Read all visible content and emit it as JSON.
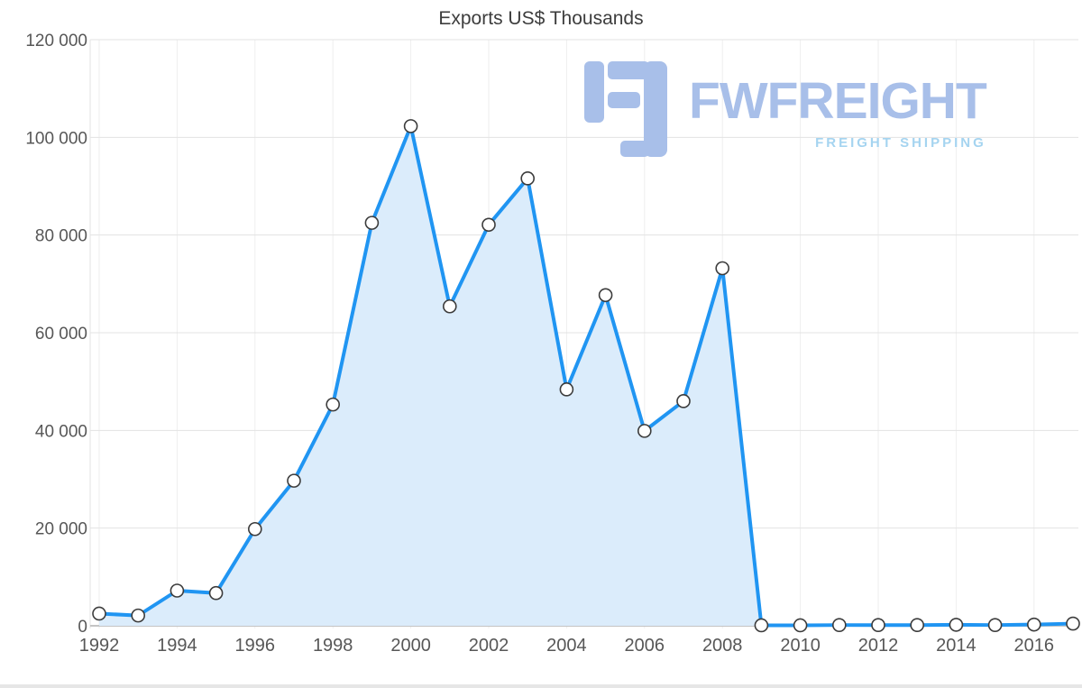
{
  "chart_data": {
    "type": "area",
    "title": "Exports US$ Thousands",
    "x": [
      1992,
      1993,
      1994,
      1995,
      1996,
      1997,
      1998,
      1999,
      2000,
      2001,
      2002,
      2003,
      2004,
      2005,
      2006,
      2007,
      2008,
      2009,
      2010,
      2011,
      2012,
      2013,
      2014,
      2015,
      2016,
      2017
    ],
    "values": [
      2500,
      2100,
      7200,
      6700,
      19800,
      29700,
      45300,
      82500,
      102300,
      65400,
      82100,
      91600,
      48400,
      67700,
      39900,
      46000,
      73200,
      100,
      100,
      150,
      150,
      150,
      200,
      150,
      250,
      450
    ],
    "ylim": [
      0,
      120000
    ],
    "yticks": [
      0,
      20000,
      40000,
      60000,
      80000,
      100000,
      120000
    ],
    "ytick_labels": [
      "0",
      "20 000",
      "40 000",
      "60 000",
      "80 000",
      "100 000",
      "120 000"
    ],
    "xticks": [
      1992,
      1994,
      1996,
      1998,
      2000,
      2002,
      2004,
      2006,
      2008,
      2010,
      2012,
      2014,
      2016
    ],
    "grid": true,
    "legend": "none",
    "line_color": "#2095f2",
    "area_fill": "#dbecfb",
    "marker_fill": "#ffffff",
    "marker_stroke": "#3c3c3c",
    "grid_color": "#e3e3e3",
    "axis_line_color": "#c4c4c4",
    "tick_label_color": "#575757"
  },
  "watermark": {
    "brand": "FWFREIGHT",
    "tagline": "FREIGHT SHIPPING",
    "brand_color": "#a8bfe9",
    "tagline_color": "#a5d4f0"
  }
}
